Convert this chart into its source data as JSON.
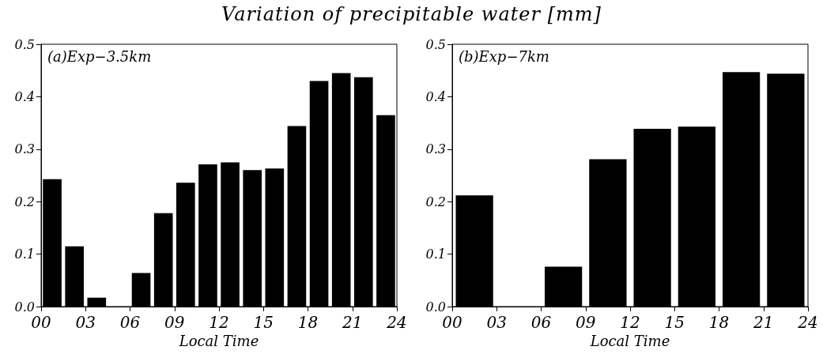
{
  "chart_data": [
    {
      "type": "bar",
      "title": "Variation of precipitable water [mm]",
      "annotations": [
        "(a)Exp−3.5km"
      ],
      "xlabel": "Local Time",
      "x": [
        0.75,
        2.25,
        3.75,
        5.25,
        6.75,
        8.25,
        9.75,
        11.25,
        12.75,
        14.25,
        15.75,
        17.25,
        18.75,
        20.25,
        21.75,
        23.25
      ],
      "values": [
        0.243,
        0.115,
        0.017,
        0,
        0.064,
        0.178,
        0.236,
        0.271,
        0.275,
        0.26,
        0.263,
        0.344,
        0.43,
        0.445,
        0.437,
        0.365
      ],
      "color": "#000000",
      "xlim": [
        0,
        24
      ],
      "xticks": [
        {
          "value": 0,
          "label": "00"
        },
        {
          "value": 3,
          "label": "03"
        },
        {
          "value": 6,
          "label": "06"
        },
        {
          "value": 9,
          "label": "09"
        },
        12,
        15,
        18,
        21,
        24
      ],
      "ylim": [
        0,
        0.5
      ],
      "yticks": [
        {
          "value": 0,
          "label": "0.0"
        },
        0.1,
        0.2,
        0.3,
        0.4,
        0.5
      ],
      "grid": false
    },
    {
      "type": "bar",
      "annotations": [
        "(b)Exp−7km"
      ],
      "xlabel": "Local Time",
      "x": [
        1.5,
        4.5,
        7.5,
        10.5,
        13.5,
        16.5,
        19.5,
        22.5
      ],
      "values": [
        0.212,
        0,
        0.076,
        0.281,
        0.339,
        0.343,
        0.447,
        0.444
      ],
      "color": "#000000",
      "xlim": [
        0,
        24
      ],
      "xticks": [
        {
          "value": 0,
          "label": "00"
        },
        {
          "value": 3,
          "label": "03"
        },
        {
          "value": 6,
          "label": "06"
        },
        {
          "value": 9,
          "label": "09"
        },
        12,
        15,
        18,
        21,
        24
      ],
      "ylim": [
        0,
        0.5
      ],
      "yticks": [
        {
          "value": 0,
          "label": "0.0"
        },
        0.1,
        0.2,
        0.3,
        0.4,
        0.5
      ],
      "grid": false
    }
  ]
}
